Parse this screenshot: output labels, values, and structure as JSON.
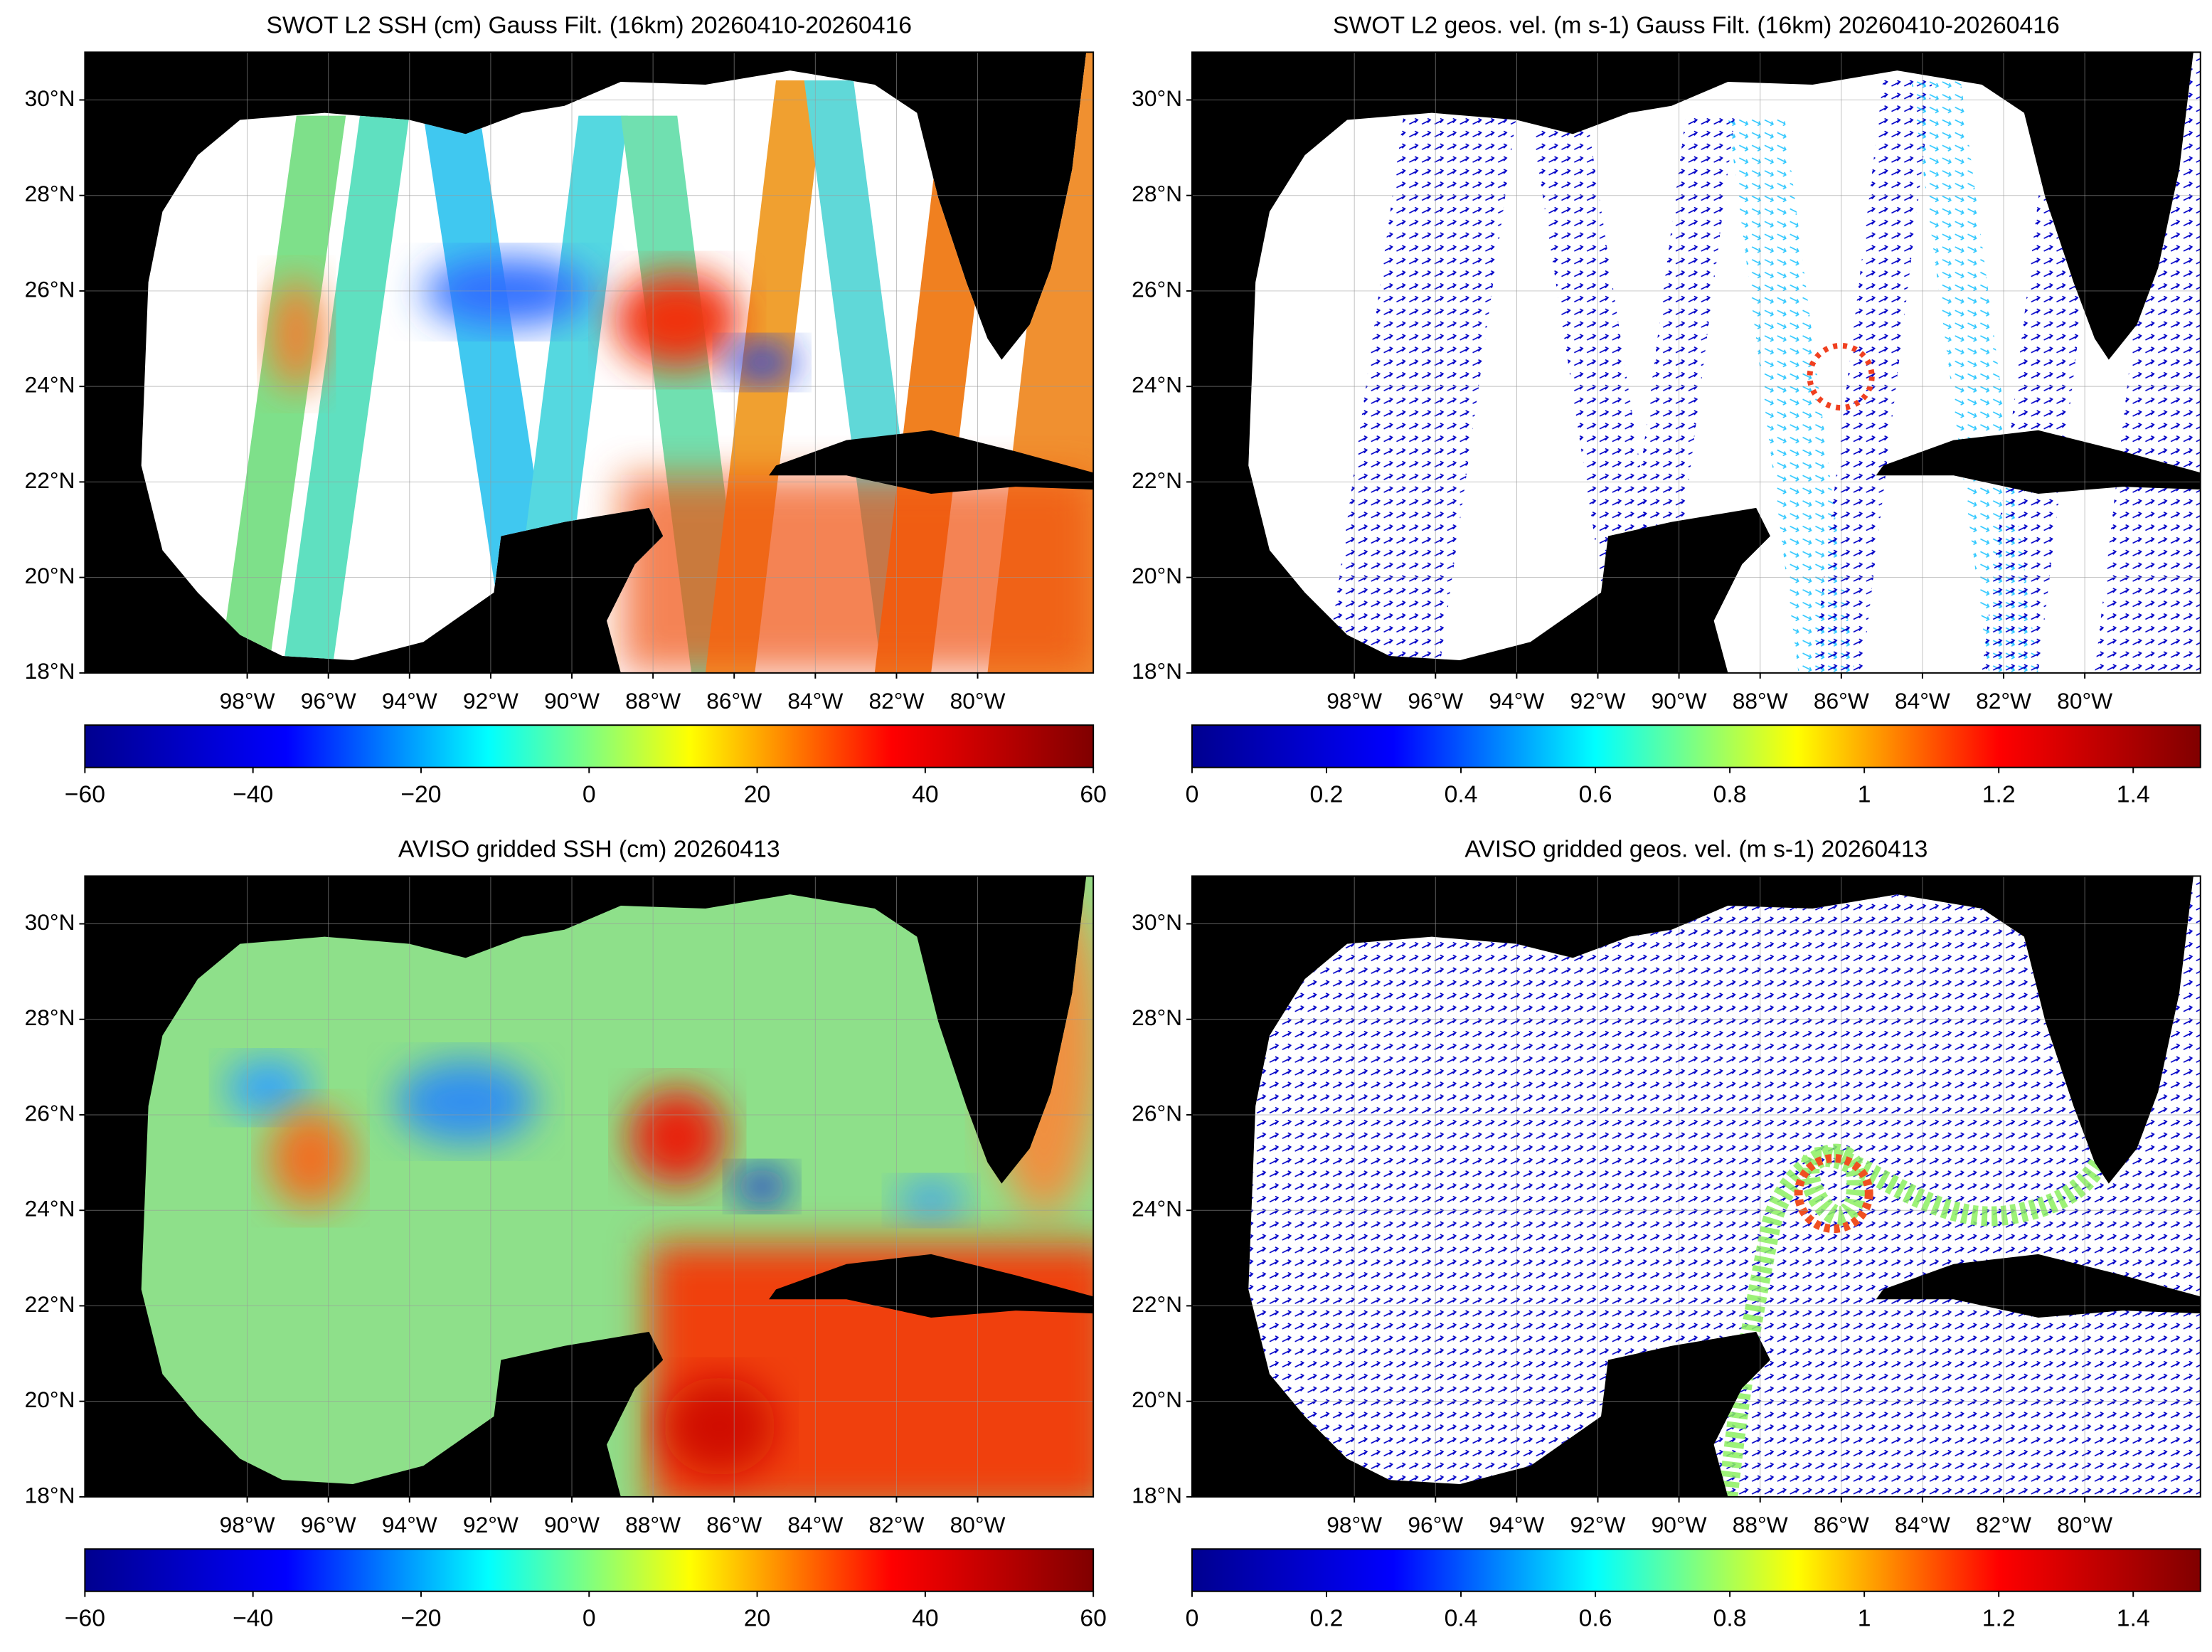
{
  "chart_data": [
    {
      "type": "map",
      "title": "SWOT L2 SSH (cm) Gauss Filt. (16km) 20260410-20260416",
      "xlim": [
        -102,
        -77.15
      ],
      "ylim": [
        18,
        31
      ],
      "xticks": [
        {
          "value": -98,
          "label": "98°W"
        },
        {
          "value": -96,
          "label": "96°W"
        },
        {
          "value": -94,
          "label": "94°W"
        },
        {
          "value": -92,
          "label": "92°W"
        },
        {
          "value": -90,
          "label": "90°W"
        },
        {
          "value": -88,
          "label": "88°W"
        },
        {
          "value": -86,
          "label": "86°W"
        },
        {
          "value": -84,
          "label": "84°W"
        },
        {
          "value": -82,
          "label": "82°W"
        },
        {
          "value": -80,
          "label": "80°W"
        }
      ],
      "yticks": [
        {
          "value": 18,
          "label": "18°N"
        },
        {
          "value": 20,
          "label": "20°N"
        },
        {
          "value": 22,
          "label": "22°N"
        },
        {
          "value": 24,
          "label": "24°N"
        },
        {
          "value": 26,
          "label": "26°N"
        },
        {
          "value": 28,
          "label": "28°N"
        },
        {
          "value": 30,
          "label": "30°N"
        }
      ],
      "grid": true,
      "colorbar": {
        "lim": [
          -60,
          60
        ],
        "ticks": [
          {
            "value": -60,
            "label": "−60"
          },
          {
            "value": -40,
            "label": "−40"
          },
          {
            "value": -20,
            "label": "−20"
          },
          0,
          20,
          40,
          60
        ],
        "colormap": [
          "#00008f",
          "#0000ff",
          "#00ffff",
          "#ffff00",
          "#ff0000",
          "#800000"
        ]
      }
    },
    {
      "type": "map",
      "title": "SWOT L2 geos. vel. (m s-1) Gauss Filt. (16km) 20260410-20260416",
      "xlim": [
        -102,
        -77.15
      ],
      "ylim": [
        18,
        31
      ],
      "xticks": [
        {
          "value": -98,
          "label": "98°W"
        },
        {
          "value": -96,
          "label": "96°W"
        },
        {
          "value": -94,
          "label": "94°W"
        },
        {
          "value": -92,
          "label": "92°W"
        },
        {
          "value": -90,
          "label": "90°W"
        },
        {
          "value": -88,
          "label": "88°W"
        },
        {
          "value": -86,
          "label": "86°W"
        },
        {
          "value": -84,
          "label": "84°W"
        },
        {
          "value": -82,
          "label": "82°W"
        },
        {
          "value": -80,
          "label": "80°W"
        }
      ],
      "yticks": [
        {
          "value": 18,
          "label": "18°N"
        },
        {
          "value": 20,
          "label": "20°N"
        },
        {
          "value": 22,
          "label": "22°N"
        },
        {
          "value": 24,
          "label": "24°N"
        },
        {
          "value": 26,
          "label": "26°N"
        },
        {
          "value": 28,
          "label": "28°N"
        },
        {
          "value": 30,
          "label": "30°N"
        }
      ],
      "grid": true,
      "colorbar": {
        "lim": [
          0,
          1.5
        ],
        "ticks": [
          0,
          0.2,
          0.4,
          0.6,
          0.8,
          1,
          1.2,
          1.4
        ],
        "colormap": [
          "#00008f",
          "#0000ff",
          "#00ffff",
          "#ffff00",
          "#ff0000",
          "#800000"
        ]
      }
    },
    {
      "type": "map",
      "title": "AVISO gridded SSH (cm) 20260413",
      "xlim": [
        -102,
        -77.15
      ],
      "ylim": [
        18,
        31
      ],
      "xticks": [
        {
          "value": -98,
          "label": "98°W"
        },
        {
          "value": -96,
          "label": "96°W"
        },
        {
          "value": -94,
          "label": "94°W"
        },
        {
          "value": -92,
          "label": "92°W"
        },
        {
          "value": -90,
          "label": "90°W"
        },
        {
          "value": -88,
          "label": "88°W"
        },
        {
          "value": -86,
          "label": "86°W"
        },
        {
          "value": -84,
          "label": "84°W"
        },
        {
          "value": -82,
          "label": "82°W"
        },
        {
          "value": -80,
          "label": "80°W"
        }
      ],
      "yticks": [
        {
          "value": 18,
          "label": "18°N"
        },
        {
          "value": 20,
          "label": "20°N"
        },
        {
          "value": 22,
          "label": "22°N"
        },
        {
          "value": 24,
          "label": "24°N"
        },
        {
          "value": 26,
          "label": "26°N"
        },
        {
          "value": 28,
          "label": "28°N"
        },
        {
          "value": 30,
          "label": "30°N"
        }
      ],
      "grid": true,
      "colorbar": {
        "lim": [
          -60,
          60
        ],
        "ticks": [
          {
            "value": -60,
            "label": "−60"
          },
          {
            "value": -40,
            "label": "−40"
          },
          {
            "value": -20,
            "label": "−20"
          },
          0,
          20,
          40,
          60
        ],
        "colormap": [
          "#00008f",
          "#0000ff",
          "#00ffff",
          "#ffff00",
          "#ff0000",
          "#800000"
        ]
      }
    },
    {
      "type": "map",
      "title": "AVISO gridded geos. vel. (m s-1)  20260413",
      "xlim": [
        -102,
        -77.15
      ],
      "ylim": [
        18,
        31
      ],
      "xticks": [
        {
          "value": -98,
          "label": "98°W"
        },
        {
          "value": -96,
          "label": "96°W"
        },
        {
          "value": -94,
          "label": "94°W"
        },
        {
          "value": -92,
          "label": "92°W"
        },
        {
          "value": -90,
          "label": "90°W"
        },
        {
          "value": -88,
          "label": "88°W"
        },
        {
          "value": -86,
          "label": "86°W"
        },
        {
          "value": -84,
          "label": "84°W"
        },
        {
          "value": -82,
          "label": "82°W"
        },
        {
          "value": -80,
          "label": "80°W"
        }
      ],
      "yticks": [
        {
          "value": 18,
          "label": "18°N"
        },
        {
          "value": 20,
          "label": "20°N"
        },
        {
          "value": 22,
          "label": "22°N"
        },
        {
          "value": 24,
          "label": "24°N"
        },
        {
          "value": 26,
          "label": "26°N"
        },
        {
          "value": 28,
          "label": "28°N"
        },
        {
          "value": 30,
          "label": "30°N"
        }
      ],
      "grid": true,
      "colorbar": {
        "lim": [
          0,
          1.5
        ],
        "ticks": [
          0,
          0.2,
          0.4,
          0.6,
          0.8,
          1,
          1.2,
          1.4
        ],
        "colormap": [
          "#00008f",
          "#0000ff",
          "#00ffff",
          "#ffff00",
          "#ff0000",
          "#800000"
        ]
      }
    }
  ]
}
